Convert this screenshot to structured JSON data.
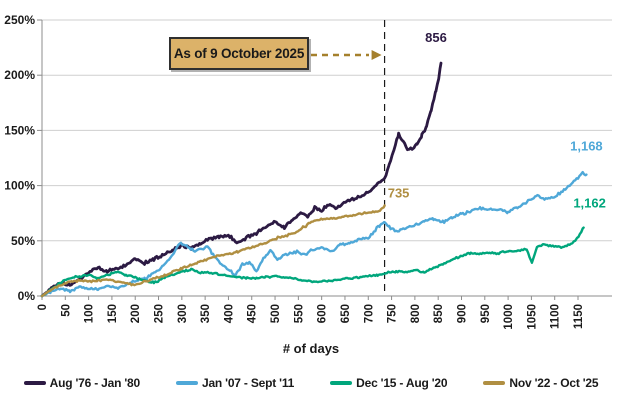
{
  "chart_data": {
    "type": "line",
    "title": "",
    "xlabel": "# of days",
    "x_ticks": [
      0,
      50,
      100,
      150,
      200,
      250,
      300,
      350,
      400,
      450,
      500,
      550,
      600,
      650,
      700,
      750,
      800,
      850,
      900,
      950,
      1000,
      1050,
      1100,
      1150
    ],
    "xlim": [
      0,
      1220
    ],
    "ylim": [
      0,
      250
    ],
    "y_ticks_pct": [
      0,
      50,
      100,
      150,
      200,
      250
    ],
    "y_tick_labels": [
      "0%",
      "50%",
      "100%",
      "150%",
      "200%",
      "250%"
    ],
    "grid": "horizontal",
    "legend_position": "bottom",
    "annotation": {
      "text": "As of 9 October 2025",
      "vline_day": 735,
      "arrow_color": "#a5802c",
      "box_fill": "#dcb269"
    },
    "series": [
      {
        "name": "Aug '76 - Jan '80",
        "color": "#2c1a43",
        "end_label": "856",
        "label_dx": -5,
        "label_dy": -21,
        "points": [
          [
            0,
            0
          ],
          [
            20,
            7
          ],
          [
            40,
            12
          ],
          [
            60,
            10
          ],
          [
            80,
            15
          ],
          [
            100,
            21
          ],
          [
            120,
            26
          ],
          [
            140,
            22
          ],
          [
            160,
            25
          ],
          [
            180,
            28
          ],
          [
            200,
            34
          ],
          [
            220,
            30
          ],
          [
            240,
            33
          ],
          [
            260,
            37
          ],
          [
            280,
            41
          ],
          [
            300,
            46
          ],
          [
            320,
            43
          ],
          [
            340,
            48
          ],
          [
            360,
            52
          ],
          [
            380,
            53
          ],
          [
            400,
            55
          ],
          [
            420,
            48
          ],
          [
            440,
            53
          ],
          [
            460,
            57
          ],
          [
            480,
            62
          ],
          [
            500,
            67
          ],
          [
            520,
            62
          ],
          [
            540,
            70
          ],
          [
            555,
            76
          ],
          [
            570,
            72
          ],
          [
            585,
            80
          ],
          [
            600,
            78
          ],
          [
            615,
            83
          ],
          [
            630,
            80
          ],
          [
            645,
            84
          ],
          [
            660,
            87
          ],
          [
            675,
            89
          ],
          [
            690,
            92
          ],
          [
            705,
            96
          ],
          [
            720,
            101
          ],
          [
            735,
            107
          ],
          [
            745,
            118
          ],
          [
            755,
            132
          ],
          [
            765,
            147
          ],
          [
            775,
            140
          ],
          [
            785,
            133
          ],
          [
            795,
            133
          ],
          [
            805,
            138
          ],
          [
            815,
            146
          ],
          [
            825,
            154
          ],
          [
            835,
            168
          ],
          [
            845,
            186
          ],
          [
            851,
            196
          ],
          [
            856,
            211
          ]
        ]
      },
      {
        "name": "Jan '07 - Sept '11",
        "color": "#4fa8d8",
        "end_label": "1,168",
        "label_dx": 0,
        "label_dy": -24,
        "points": [
          [
            0,
            0
          ],
          [
            20,
            4
          ],
          [
            40,
            7
          ],
          [
            60,
            4
          ],
          [
            80,
            8
          ],
          [
            100,
            7
          ],
          [
            120,
            6
          ],
          [
            140,
            9
          ],
          [
            160,
            7
          ],
          [
            180,
            10
          ],
          [
            200,
            13
          ],
          [
            220,
            16
          ],
          [
            240,
            21
          ],
          [
            260,
            27
          ],
          [
            280,
            37
          ],
          [
            295,
            48
          ],
          [
            310,
            45
          ],
          [
            325,
            41
          ],
          [
            340,
            43
          ],
          [
            355,
            45
          ],
          [
            370,
            36
          ],
          [
            385,
            29
          ],
          [
            400,
            24
          ],
          [
            415,
            19
          ],
          [
            430,
            29
          ],
          [
            445,
            31
          ],
          [
            460,
            23
          ],
          [
            475,
            34
          ],
          [
            490,
            41
          ],
          [
            505,
            33
          ],
          [
            520,
            37
          ],
          [
            535,
            39
          ],
          [
            550,
            40
          ],
          [
            565,
            37
          ],
          [
            580,
            42
          ],
          [
            600,
            44
          ],
          [
            620,
            40
          ],
          [
            640,
            46
          ],
          [
            660,
            48
          ],
          [
            680,
            51
          ],
          [
            700,
            53
          ],
          [
            715,
            60
          ],
          [
            725,
            64
          ],
          [
            735,
            67
          ],
          [
            745,
            62
          ],
          [
            760,
            59
          ],
          [
            780,
            61
          ],
          [
            800,
            64
          ],
          [
            820,
            68
          ],
          [
            840,
            70
          ],
          [
            860,
            67
          ],
          [
            880,
            71
          ],
          [
            900,
            74
          ],
          [
            920,
            77
          ],
          [
            940,
            80
          ],
          [
            960,
            78
          ],
          [
            980,
            78
          ],
          [
            1000,
            76
          ],
          [
            1020,
            80
          ],
          [
            1040,
            85
          ],
          [
            1060,
            91
          ],
          [
            1075,
            88
          ],
          [
            1090,
            89
          ],
          [
            1105,
            91
          ],
          [
            1120,
            96
          ],
          [
            1135,
            101
          ],
          [
            1150,
            107
          ],
          [
            1160,
            112
          ],
          [
            1168,
            110
          ]
        ]
      },
      {
        "name": "Dec '15 - Aug '20",
        "color": "#00a67c",
        "end_label": "1,162",
        "label_dx": 6,
        "label_dy": -20,
        "points": [
          [
            0,
            0
          ],
          [
            20,
            6
          ],
          [
            40,
            12
          ],
          [
            60,
            16
          ],
          [
            80,
            18
          ],
          [
            100,
            19
          ],
          [
            120,
            16
          ],
          [
            140,
            19
          ],
          [
            160,
            22
          ],
          [
            180,
            19
          ],
          [
            200,
            17
          ],
          [
            220,
            14
          ],
          [
            240,
            12
          ],
          [
            260,
            16
          ],
          [
            280,
            19
          ],
          [
            300,
            22
          ],
          [
            320,
            24
          ],
          [
            340,
            21
          ],
          [
            360,
            21
          ],
          [
            380,
            20
          ],
          [
            400,
            18
          ],
          [
            420,
            17
          ],
          [
            440,
            16
          ],
          [
            460,
            16
          ],
          [
            480,
            17
          ],
          [
            500,
            18
          ],
          [
            520,
            17
          ],
          [
            540,
            16
          ],
          [
            560,
            14
          ],
          [
            580,
            13
          ],
          [
            600,
            13
          ],
          [
            620,
            14
          ],
          [
            640,
            15
          ],
          [
            660,
            16
          ],
          [
            680,
            17
          ],
          [
            700,
            18
          ],
          [
            720,
            19
          ],
          [
            740,
            21
          ],
          [
            760,
            22
          ],
          [
            780,
            22
          ],
          [
            800,
            23
          ],
          [
            820,
            22
          ],
          [
            840,
            25
          ],
          [
            860,
            29
          ],
          [
            880,
            33
          ],
          [
            900,
            36
          ],
          [
            920,
            39
          ],
          [
            940,
            38
          ],
          [
            960,
            39
          ],
          [
            980,
            39
          ],
          [
            1000,
            40
          ],
          [
            1020,
            41
          ],
          [
            1040,
            42
          ],
          [
            1051,
            30
          ],
          [
            1062,
            44
          ],
          [
            1075,
            47
          ],
          [
            1090,
            46
          ],
          [
            1105,
            45
          ],
          [
            1120,
            44
          ],
          [
            1135,
            47
          ],
          [
            1148,
            52
          ],
          [
            1162,
            62
          ]
        ]
      },
      {
        "name": "Nov '22 - Oct '25",
        "color": "#b08f42",
        "end_label": "735",
        "label_dx": 14,
        "label_dy": -8,
        "points": [
          [
            0,
            0
          ],
          [
            20,
            6
          ],
          [
            40,
            10
          ],
          [
            60,
            13
          ],
          [
            80,
            14
          ],
          [
            100,
            13
          ],
          [
            120,
            14
          ],
          [
            140,
            15
          ],
          [
            160,
            13
          ],
          [
            180,
            12
          ],
          [
            200,
            10
          ],
          [
            220,
            13
          ],
          [
            240,
            16
          ],
          [
            260,
            18
          ],
          [
            280,
            22
          ],
          [
            300,
            25
          ],
          [
            320,
            28
          ],
          [
            340,
            31
          ],
          [
            360,
            34
          ],
          [
            380,
            37
          ],
          [
            400,
            38
          ],
          [
            420,
            40
          ],
          [
            440,
            43
          ],
          [
            460,
            45
          ],
          [
            480,
            48
          ],
          [
            500,
            52
          ],
          [
            520,
            54
          ],
          [
            540,
            57
          ],
          [
            560,
            62
          ],
          [
            575,
            66
          ],
          [
            590,
            69
          ],
          [
            605,
            70
          ],
          [
            620,
            70
          ],
          [
            635,
            71
          ],
          [
            650,
            72
          ],
          [
            665,
            73
          ],
          [
            680,
            74
          ],
          [
            695,
            75
          ],
          [
            710,
            76
          ],
          [
            722,
            77
          ],
          [
            730,
            79
          ],
          [
            735,
            82
          ]
        ]
      }
    ]
  }
}
